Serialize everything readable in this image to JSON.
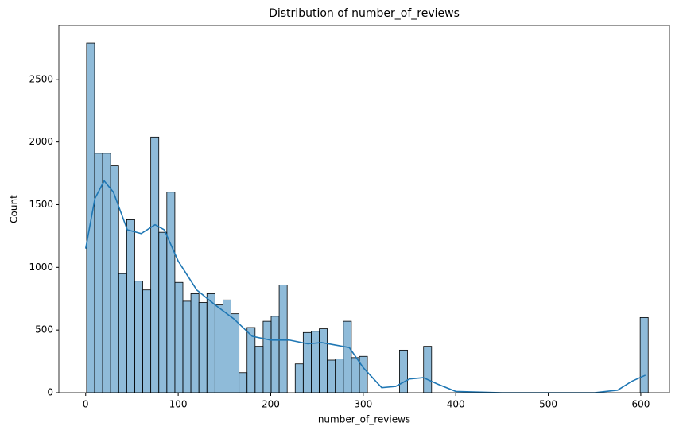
{
  "chart_data": {
    "type": "histogram",
    "title": "Distribution of number_of_reviews",
    "x_label": "number_of_reviews",
    "y_label": "Count",
    "color": "#1f77b4",
    "bins": [
      1,
      9.67,
      18.34,
      27.01,
      35.69,
      44.36,
      53.03,
      61.7,
      70.37,
      79.04,
      87.71,
      96.39,
      105.06,
      113.73,
      122.4,
      131.07,
      139.74,
      148.41,
      157.09,
      165.76,
      174.43,
      183.1,
      191.77,
      200.44,
      209.11,
      217.79,
      226.46,
      235.13,
      243.8,
      252.47,
      261.14,
      269.81,
      278.49,
      287.16,
      295.83,
      304.5,
      313.17,
      321.84,
      330.51,
      339.19,
      347.86,
      356.53,
      365.2,
      373.87,
      382.54,
      391.21,
      399.89,
      408.56,
      417.23,
      425.9,
      434.57,
      443.24,
      451.91,
      460.59,
      469.26,
      477.93,
      486.6,
      495.27,
      503.94,
      512.61,
      521.29,
      529.96,
      538.63,
      547.3,
      555.97,
      564.64,
      573.31,
      581.99,
      590.66,
      599.33,
      608
    ],
    "values": [
      2790,
      1910,
      1910,
      1810,
      950,
      1380,
      890,
      820,
      2040,
      1280,
      1600,
      880,
      730,
      790,
      720,
      790,
      700,
      740,
      630,
      160,
      520,
      370,
      570,
      610,
      860,
      0,
      230,
      480,
      490,
      510,
      260,
      270,
      570,
      280,
      290,
      0,
      0,
      0,
      0,
      340,
      0,
      0,
      370,
      0,
      0,
      0,
      0,
      0,
      0,
      0,
      0,
      0,
      0,
      0,
      0,
      0,
      0,
      0,
      0,
      0,
      0,
      0,
      0,
      0,
      0,
      0,
      0,
      0,
      0,
      600
    ],
    "kde": {
      "x": [
        0,
        10,
        20,
        30,
        45,
        60,
        75,
        85,
        100,
        120,
        140,
        160,
        180,
        200,
        220,
        240,
        255,
        270,
        285,
        300,
        320,
        335,
        350,
        365,
        380,
        400,
        450,
        550,
        575,
        590,
        605
      ],
      "values": [
        1150,
        1550,
        1690,
        1600,
        1300,
        1270,
        1340,
        1300,
        1050,
        820,
        700,
        590,
        450,
        420,
        420,
        390,
        400,
        380,
        360,
        200,
        40,
        50,
        110,
        120,
        70,
        10,
        0,
        0,
        20,
        90,
        140
      ]
    },
    "xlim": [
      -29,
      631
    ],
    "ylim": [
      0,
      2930
    ],
    "xticks": [
      0,
      100,
      200,
      300,
      400,
      500,
      600
    ],
    "yticks": [
      0,
      500,
      1000,
      1500,
      2000,
      2500
    ]
  }
}
